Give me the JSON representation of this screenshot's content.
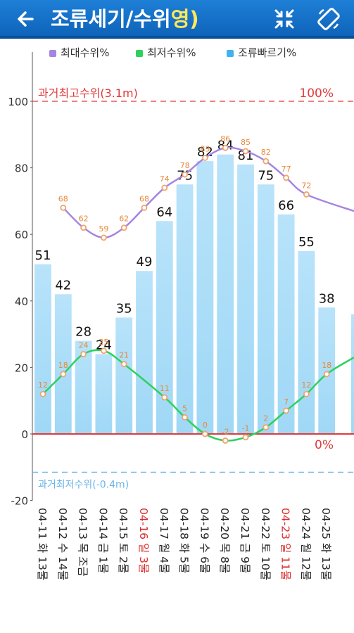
{
  "header": {
    "back_icon": "back-arrow-icon",
    "title": "조류세기/수위",
    "title_accent": "영)",
    "collapse_icon": "collapse-arrows-icon",
    "rotate_icon": "screen-rotation-icon"
  },
  "legend": {
    "max": "최대수위%",
    "min": "최저수위%",
    "speed": "조류빠르기%"
  },
  "colors": {
    "header_bg": "#1575cc",
    "bar": "#a9dcf7",
    "max_line": "#a486e2",
    "min_line": "#2ed15c",
    "marker": "#f0a36e",
    "reference": "#e03a3a",
    "low_reference": "#6ab4e8",
    "sunday": "#d92b2b"
  },
  "chart_data": {
    "type": "bar",
    "categories": [
      "04-11 화 13물",
      "04-12 수 14물",
      "04-13 목 조금",
      "04-14 금 1물",
      "04-15 토 2물",
      "04-16 일 3물",
      "04-17 월 4물",
      "04-18 화 5물",
      "04-19 수 6물",
      "04-20 목 8물",
      "04-21 금 9물",
      "04-22 토 10물",
      "04-23 일 11물",
      "04-24 월 12물",
      "04-25 화 13물"
    ],
    "sunday_flags": [
      false,
      false,
      false,
      false,
      false,
      true,
      false,
      false,
      false,
      false,
      false,
      false,
      true,
      false,
      false
    ],
    "series": [
      {
        "name": "조류빠르기%",
        "kind": "bar",
        "values": [
          51,
          42,
          28,
          24,
          35,
          49,
          64,
          75,
          82,
          84,
          81,
          75,
          66,
          55,
          38
        ]
      },
      {
        "name": "최대수위%",
        "kind": "line",
        "values": [
          null,
          68,
          62,
          59,
          62,
          68,
          74,
          78,
          83,
          86,
          85,
          82,
          77,
          72,
          null
        ],
        "trailing_value": 67
      },
      {
        "name": "최저수위%",
        "kind": "line",
        "values": [
          12,
          18,
          24,
          25,
          21,
          null,
          11,
          5,
          0,
          -2,
          -1,
          2,
          7,
          12,
          18
        ],
        "trailing_value": 23
      }
    ],
    "ylim": [
      -20,
      100
    ],
    "yticks": [
      "-20",
      "0",
      "20",
      "40",
      "60",
      "80",
      "100"
    ],
    "reference_lines": [
      {
        "value": 100,
        "label": "과거최고수위(3.1m)",
        "right_label": "100%"
      },
      {
        "value": 0,
        "right_label": "0%"
      },
      {
        "value": -11.5,
        "label": "과거최저수위(-0.4m)"
      }
    ],
    "grid": false
  }
}
